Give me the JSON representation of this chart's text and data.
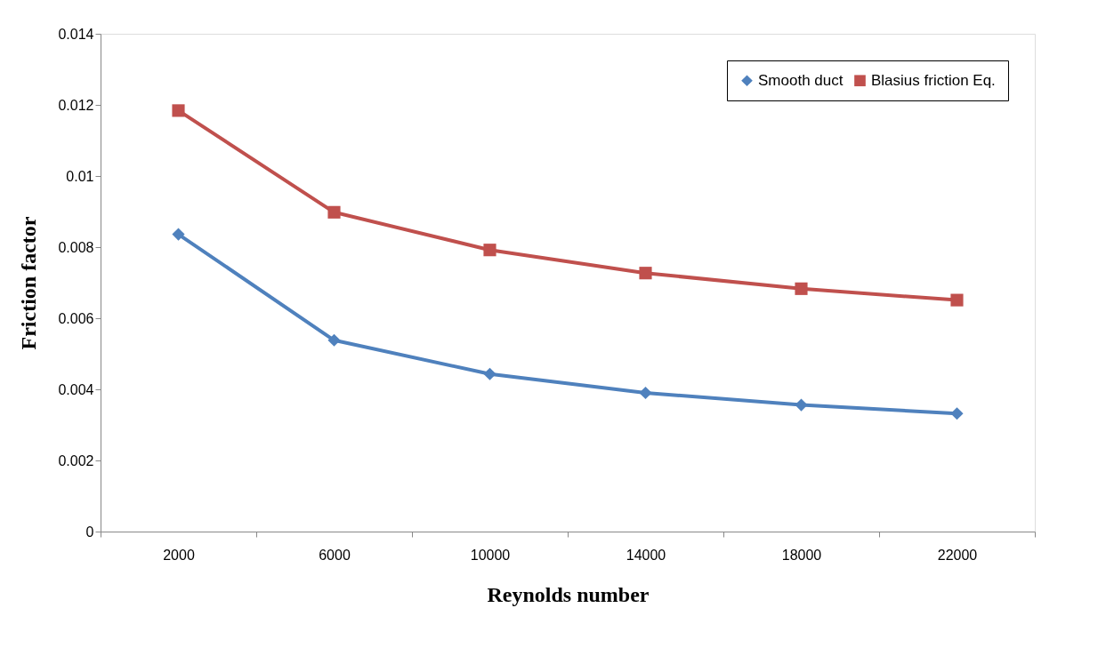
{
  "chart_data": {
    "type": "line",
    "xlabel": "Reynolds number",
    "ylabel": "Friction factor",
    "categories": [
      "2000",
      "6000",
      "10000",
      "14000",
      "18000",
      "22000"
    ],
    "series": [
      {
        "name": "Smooth duct",
        "color": "#4f81bd",
        "marker": "diamond",
        "values": [
          0.00836,
          0.00538,
          0.00443,
          0.0039,
          0.00356,
          0.00332
        ]
      },
      {
        "name": "Blasius friction Eq.",
        "color": "#c0504d",
        "marker": "square",
        "values": [
          0.01184,
          0.00898,
          0.00792,
          0.00727,
          0.00683,
          0.00651
        ]
      }
    ],
    "ylim": [
      0,
      0.014
    ],
    "yticks": [
      0,
      0.002,
      0.004,
      0.006,
      0.008,
      0.01,
      0.012,
      0.014
    ],
    "grid": false,
    "legend": "top right",
    "line_style": "solid"
  }
}
